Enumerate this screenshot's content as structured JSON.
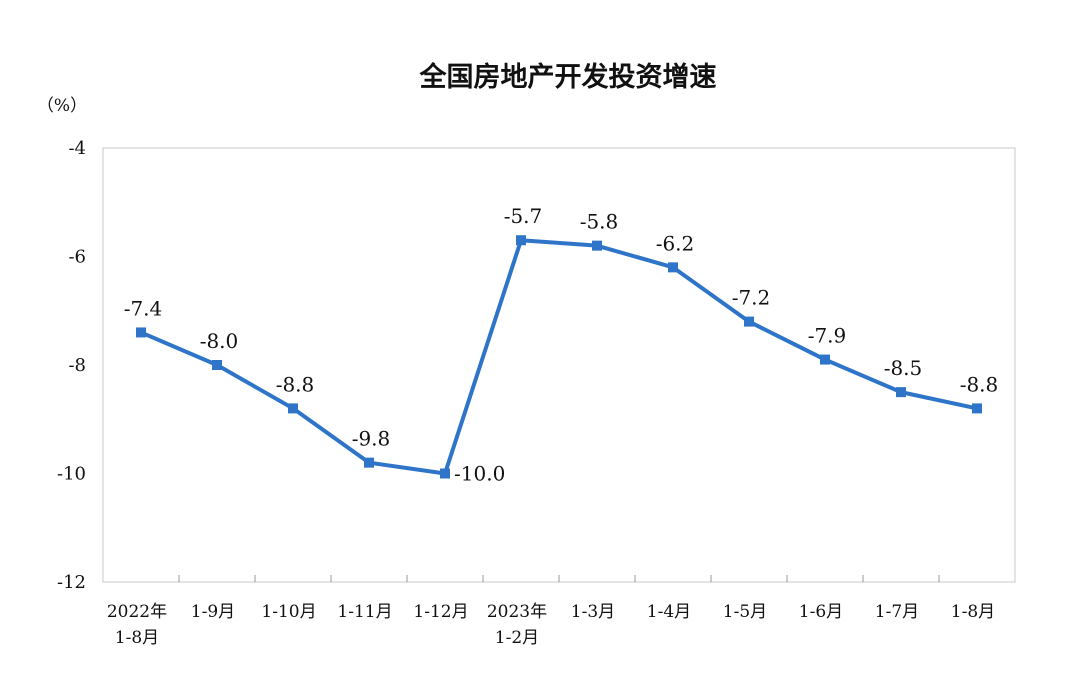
{
  "chart_data": {
    "type": "line",
    "title": "全国房地产开发投资增速",
    "unit_label": "（%）",
    "xlabel": "",
    "ylabel": "",
    "ylim": [
      -12,
      -4
    ],
    "yticks": [
      -4,
      -6,
      -8,
      -10,
      -12
    ],
    "ytick_labels": [
      "-4",
      "-6",
      "-8",
      "-10",
      "-12"
    ],
    "grid": false,
    "legend": "none",
    "categories": [
      [
        "2022年",
        "1-8月"
      ],
      [
        "1-9月"
      ],
      [
        "1-10月"
      ],
      [
        "1-11月"
      ],
      [
        "1-12月"
      ],
      [
        "2023年",
        "1-2月"
      ],
      [
        "1-3月"
      ],
      [
        "1-4月"
      ],
      [
        "1-5月"
      ],
      [
        "1-6月"
      ],
      [
        "1-7月"
      ],
      [
        "1-8月"
      ]
    ],
    "series": [
      {
        "values": [
          -7.4,
          -8.0,
          -8.8,
          -9.8,
          -10.0,
          -5.7,
          -5.8,
          -6.2,
          -7.2,
          -7.9,
          -8.5,
          -8.8
        ],
        "data_labels": [
          "-7.4",
          "-8.0",
          "-8.8",
          "-9.8",
          "-10.0",
          "-5.7",
          "-5.8",
          "-6.2",
          "-7.2",
          "-7.9",
          "-8.5",
          "-8.8"
        ],
        "color": "#2e74c8"
      }
    ]
  }
}
